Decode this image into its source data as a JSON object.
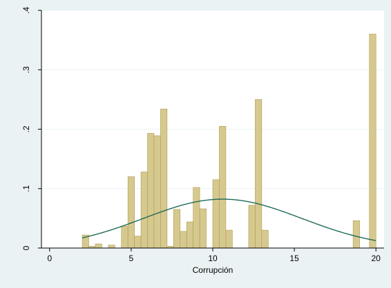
{
  "chart_data": {
    "type": "histogram",
    "title": "",
    "xlabel": "Corrupción",
    "ylabel": "",
    "xlim": [
      -0.5,
      20.5
    ],
    "ylim": [
      0,
      0.4
    ],
    "xticks": [
      0,
      5,
      10,
      15,
      20
    ],
    "xtick_labels": [
      "0",
      "5",
      "10",
      "15",
      "20"
    ],
    "yticks": [
      0,
      0.1,
      0.2,
      0.3,
      0.4
    ],
    "ytick_labels": [
      "0",
      ".1",
      ".2",
      ".3",
      ".4"
    ],
    "grid": "horizontal",
    "legend": "none",
    "bin_width": 0.4,
    "bins": [
      {
        "x0": 2.0,
        "x1": 2.4,
        "density": 0.022
      },
      {
        "x0": 2.4,
        "x1": 2.8,
        "density": 0.003
      },
      {
        "x0": 2.8,
        "x1": 3.2,
        "density": 0.007
      },
      {
        "x0": 3.6,
        "x1": 4.0,
        "density": 0.005
      },
      {
        "x0": 4.4,
        "x1": 4.8,
        "density": 0.037
      },
      {
        "x0": 4.8,
        "x1": 5.2,
        "density": 0.12
      },
      {
        "x0": 5.2,
        "x1": 5.6,
        "density": 0.02
      },
      {
        "x0": 5.6,
        "x1": 6.0,
        "density": 0.128
      },
      {
        "x0": 6.0,
        "x1": 6.4,
        "density": 0.193
      },
      {
        "x0": 6.4,
        "x1": 6.8,
        "density": 0.189
      },
      {
        "x0": 6.8,
        "x1": 7.2,
        "density": 0.234
      },
      {
        "x0": 7.2,
        "x1": 7.6,
        "density": 0.003
      },
      {
        "x0": 7.6,
        "x1": 8.0,
        "density": 0.065
      },
      {
        "x0": 8.0,
        "x1": 8.4,
        "density": 0.028
      },
      {
        "x0": 8.4,
        "x1": 8.8,
        "density": 0.044
      },
      {
        "x0": 8.8,
        "x1": 9.2,
        "density": 0.102
      },
      {
        "x0": 9.2,
        "x1": 9.6,
        "density": 0.066
      },
      {
        "x0": 10.0,
        "x1": 10.4,
        "density": 0.115
      },
      {
        "x0": 10.4,
        "x1": 10.8,
        "density": 0.205
      },
      {
        "x0": 10.8,
        "x1": 11.2,
        "density": 0.03
      },
      {
        "x0": 12.2,
        "x1": 12.6,
        "density": 0.072
      },
      {
        "x0": 12.6,
        "x1": 13.0,
        "density": 0.25
      },
      {
        "x0": 13.0,
        "x1": 13.4,
        "density": 0.03
      },
      {
        "x0": 18.6,
        "x1": 19.0,
        "density": 0.046
      },
      {
        "x0": 19.6,
        "x1": 20.0,
        "density": 0.36
      }
    ],
    "normal_curve": {
      "mean": 10.6,
      "sd": 4.85
    },
    "colors": {
      "bar_fill": "#d6c98f",
      "bar_edge": "#b09a4e",
      "curve": "#1e6a5a",
      "plot_bg": "#ffffff",
      "outer_bg": "#eaf2f3",
      "grid": "#eaf2f3"
    }
  }
}
